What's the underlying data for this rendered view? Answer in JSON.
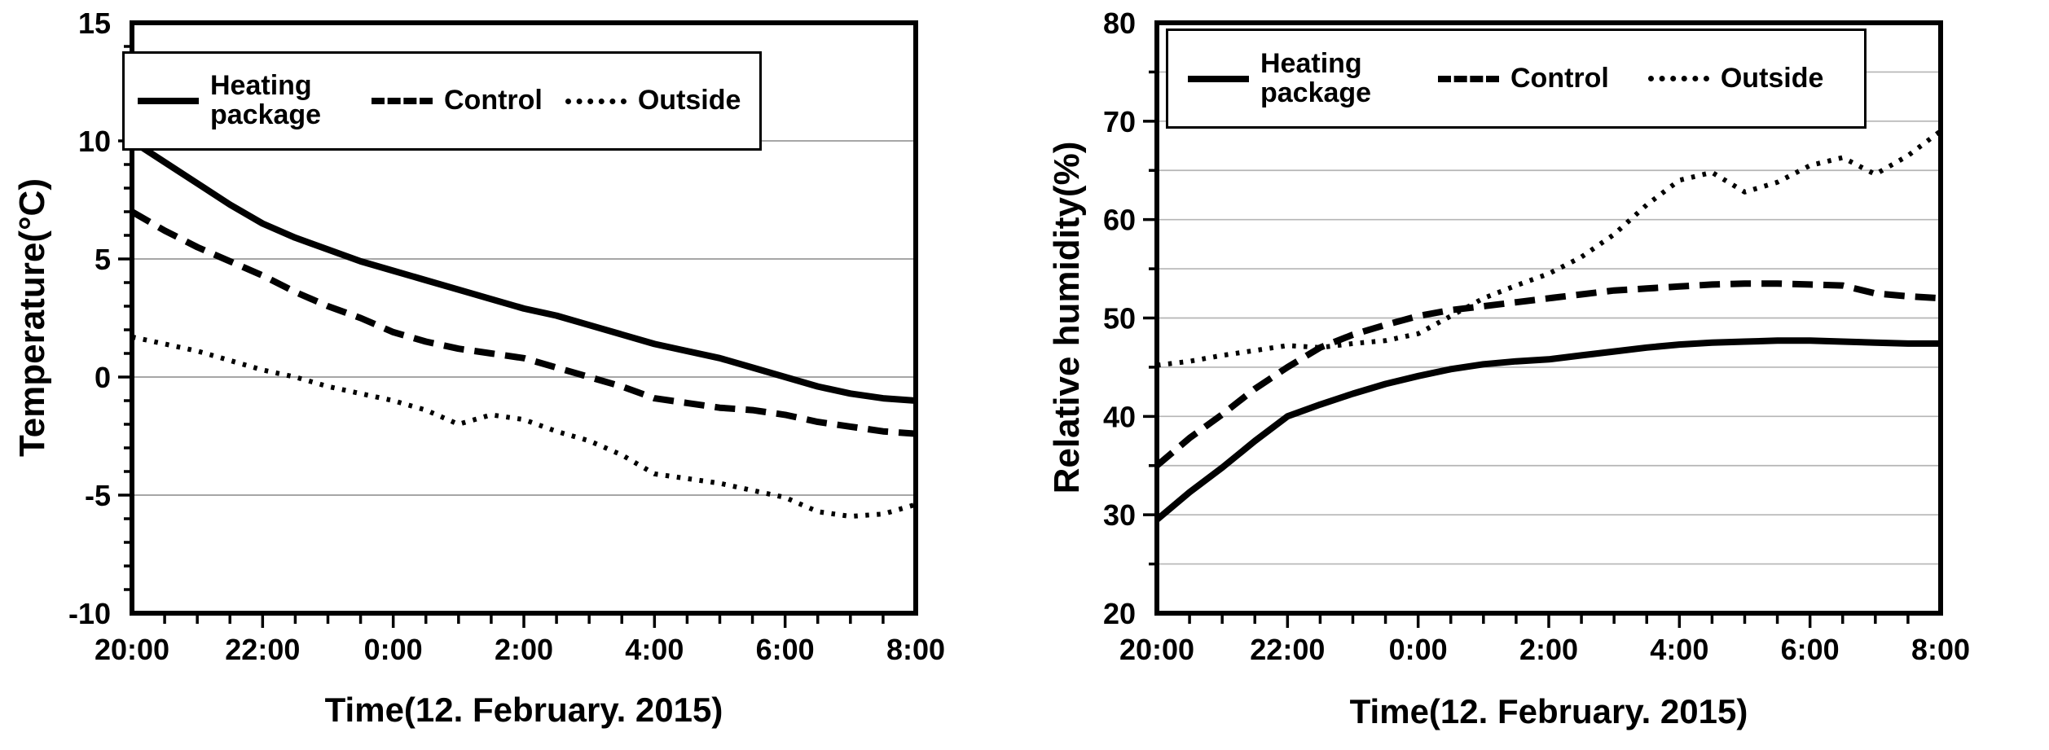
{
  "figure": {
    "background": "#ffffff",
    "ink_color": "#000000"
  },
  "chart_data": [
    {
      "type": "line",
      "panel": "left",
      "xlabel": "Time(12. February. 2015)",
      "ylabel": "Temperature(°C)",
      "x_tick_labels": [
        "20:00",
        "22:00",
        "0:00",
        "2:00",
        "4:00",
        "6:00",
        "8:00"
      ],
      "x_tick_hours": [
        0,
        2,
        4,
        6,
        8,
        10,
        12
      ],
      "x_range_hours": [
        0,
        12
      ],
      "x_minor_tick_step_hours": 0.5,
      "sample_step_hours": 0.5,
      "ylim": [
        -10,
        15
      ],
      "y_tick_labels": [
        "15",
        "10",
        "5",
        "0",
        "-5",
        "-10"
      ],
      "y_label_step": 5,
      "y_grid_step": 5,
      "y_minor_tick_step": 1,
      "grid": "horizontal",
      "grid_color": "#9a9a9a",
      "legend_position": "top-inside",
      "series": [
        {
          "name": "Heating package",
          "line_style": "solid",
          "color": "#000000",
          "values": [
            10,
            9.1,
            8.2,
            7.3,
            6.5,
            5.9,
            5.4,
            4.9,
            4.5,
            4.1,
            3.7,
            3.3,
            2.9,
            2.6,
            2.2,
            1.8,
            1.4,
            1.1,
            0.8,
            0.4,
            0,
            -0.4,
            -0.7,
            -0.9,
            -1
          ]
        },
        {
          "name": "Control",
          "line_style": "dashed",
          "color": "#000000",
          "values": [
            7,
            6.2,
            5.5,
            4.9,
            4.3,
            3.6,
            3,
            2.5,
            1.9,
            1.5,
            1.2,
            1,
            0.8,
            0.4,
            0,
            -0.4,
            -0.9,
            -1.1,
            -1.3,
            -1.4,
            -1.6,
            -1.9,
            -2.1,
            -2.3,
            -2.4
          ]
        },
        {
          "name": "Outside",
          "line_style": "dotted",
          "color": "#000000",
          "values": [
            1.7,
            1.4,
            1.1,
            0.7,
            0.3,
            0,
            -0.4,
            -0.7,
            -1,
            -1.4,
            -2,
            -1.6,
            -1.8,
            -2.3,
            -2.7,
            -3.3,
            -4.1,
            -4.3,
            -4.5,
            -4.8,
            -5.1,
            -5.7,
            -5.9,
            -5.8,
            -5.4
          ]
        }
      ]
    },
    {
      "type": "line",
      "panel": "right",
      "xlabel": "Time(12. February. 2015)",
      "ylabel": "Relative humidity(%)",
      "x_tick_labels": [
        "20:00",
        "22:00",
        "0:00",
        "2:00",
        "4:00",
        "6:00",
        "8:00"
      ],
      "x_tick_hours": [
        0,
        2,
        4,
        6,
        8,
        10,
        12
      ],
      "x_range_hours": [
        0,
        12
      ],
      "x_minor_tick_step_hours": 0.5,
      "sample_step_hours": 0.5,
      "ylim": [
        20,
        80
      ],
      "y_tick_labels": [
        "80",
        "70",
        "60",
        "50",
        "40",
        "30",
        "20"
      ],
      "y_label_step": 10,
      "y_grid_step": 5,
      "y_minor_tick_step": 5,
      "grid": "horizontal",
      "grid_color": "#b5b5b5",
      "legend_position": "top-inside",
      "series": [
        {
          "name": "Heating package",
          "line_style": "solid",
          "color": "#000000",
          "values": [
            29.5,
            32.3,
            34.8,
            37.5,
            40,
            41.2,
            42.3,
            43.3,
            44.1,
            44.8,
            45.3,
            45.6,
            45.8,
            46.2,
            46.6,
            47,
            47.3,
            47.5,
            47.6,
            47.7,
            47.7,
            47.6,
            47.5,
            47.4,
            47.4
          ]
        },
        {
          "name": "Control",
          "line_style": "dashed",
          "color": "#000000",
          "values": [
            35,
            37.8,
            40.2,
            42.8,
            45,
            47,
            48.3,
            49.3,
            50.2,
            50.8,
            51.2,
            51.6,
            52,
            52.4,
            52.8,
            53,
            53.2,
            53.4,
            53.5,
            53.5,
            53.4,
            53.3,
            52.5,
            52.2,
            52
          ]
        },
        {
          "name": "Outside",
          "line_style": "dotted",
          "color": "#000000",
          "values": [
            45.2,
            45.6,
            46.2,
            46.7,
            47.2,
            47,
            47.4,
            47.7,
            48.4,
            50.2,
            52,
            53.3,
            54.5,
            56.2,
            58.5,
            61.5,
            64,
            64.8,
            62.8,
            63.8,
            65.5,
            66.3,
            64.6,
            66.5,
            69
          ]
        }
      ]
    }
  ]
}
